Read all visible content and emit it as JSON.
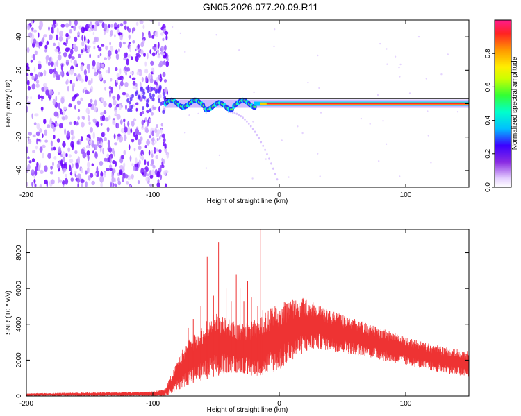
{
  "title": "GN05.2026.077.20.09.R11",
  "chart_data": [
    {
      "type": "heatmap",
      "title": "GN05.2026.077.20.09.R11",
      "xlabel": "Height of straight line (km)",
      "ylabel": "Frequency (Hz)",
      "xlim": [
        -200,
        150
      ],
      "ylim": [
        -50,
        50
      ],
      "xticks": [
        -200,
        -100,
        0,
        100
      ],
      "yticks": [
        -40,
        -20,
        0,
        20,
        40
      ],
      "colorbar": {
        "label": "Normalized spectral amplitude",
        "range": [
          0,
          1
        ],
        "ticks": [
          "0.0",
          "0.2",
          "0.4",
          "0.6",
          "0.8"
        ]
      },
      "features": {
        "noise_region_x": [
          -200,
          -90
        ],
        "ridge_frequency_hz": 0,
        "ridge_start_x": -90,
        "ridge_end_x": 150
      }
    },
    {
      "type": "line",
      "xlabel": "Height of straight line (km)",
      "ylabel": "SNR (10 * v/v)",
      "xlim": [
        -200,
        150
      ],
      "ylim": [
        0,
        9300
      ],
      "xticks": [
        -200,
        -100,
        0,
        100
      ],
      "yticks": [
        0,
        2000,
        4000,
        6000,
        8000
      ],
      "color": "#ee3333",
      "envelope": {
        "x": [
          -200,
          -150,
          -100,
          -90,
          -80,
          -70,
          -60,
          -50,
          -40,
          -30,
          -20,
          -10,
          0,
          10,
          20,
          30,
          40,
          60,
          80,
          100,
          120,
          150
        ],
        "lower": [
          0,
          0,
          0,
          0,
          300,
          700,
          900,
          1100,
          1300,
          1300,
          1100,
          1200,
          1400,
          2000,
          2400,
          2600,
          2500,
          2300,
          2000,
          1700,
          1400,
          1000
        ],
        "upper": [
          150,
          200,
          250,
          400,
          2200,
          3300,
          4000,
          4700,
          4300,
          4000,
          4200,
          4800,
          5200,
          5400,
          5500,
          5200,
          4800,
          4300,
          3800,
          3300,
          2900,
          2500
        ]
      },
      "spikes": {
        "x": [
          -72,
          -68,
          -62,
          -57,
          -52,
          -48,
          -42,
          -38,
          -34,
          -31,
          -28,
          -25,
          -22,
          -17,
          -15,
          -13
        ],
        "y": [
          3800,
          4300,
          5000,
          7800,
          5600,
          8600,
          6000,
          5300,
          6800,
          6000,
          5300,
          6400,
          5500,
          5000,
          9300,
          4800
        ]
      }
    }
  ]
}
